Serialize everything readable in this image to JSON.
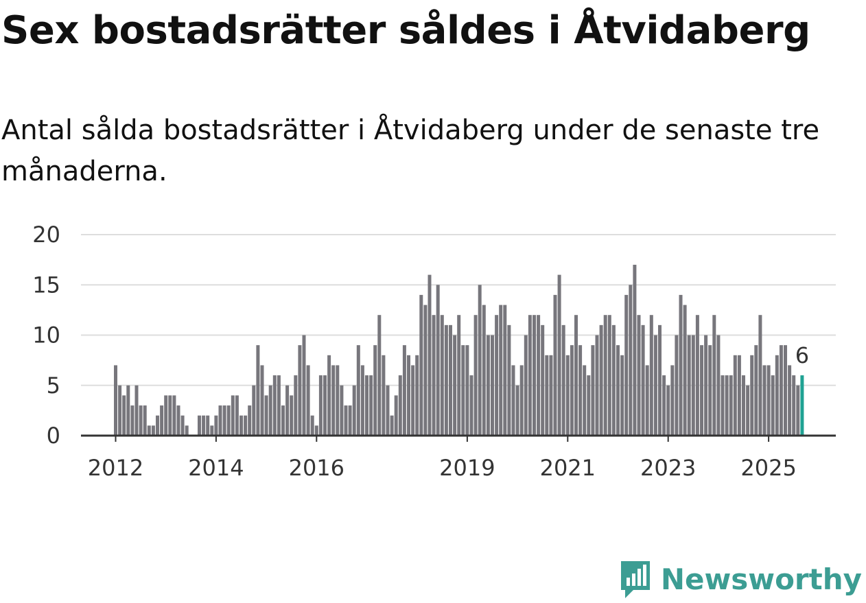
{
  "title": "Sex bostadsrätter såldes i Åtvidaberg",
  "subtitle": "Antal sålda bostadsrätter i Åtvidaberg under de senaste tre månaderna.",
  "colors": {
    "bar": "#77767c",
    "highlight": "#20a293",
    "grid": "#dddddd",
    "axis": "#333333",
    "brand": "#3c9d93"
  },
  "logo": {
    "text": "Newsworthy",
    "icon": "newsworthy-logo-icon"
  },
  "chart_data": {
    "type": "bar",
    "title": "Sex bostadsrätter såldes i Åtvidaberg",
    "xlabel": "",
    "ylabel": "",
    "ylim": [
      0,
      20
    ],
    "yticks": [
      0,
      5,
      10,
      15,
      20
    ],
    "x_start": "2012-01",
    "grid": true,
    "xtick_labels": [
      {
        "label": "2012",
        "index": 0
      },
      {
        "label": "2014",
        "index": 24
      },
      {
        "label": "2016",
        "index": 48
      },
      {
        "label": "2019",
        "index": 84
      },
      {
        "label": "2021",
        "index": 108
      },
      {
        "label": "2023",
        "index": 132
      },
      {
        "label": "2025",
        "index": 156
      }
    ],
    "highlight_label": "6",
    "values": [
      7,
      5,
      4,
      5,
      3,
      5,
      3,
      3,
      1,
      1,
      2,
      3,
      4,
      4,
      4,
      3,
      2,
      1,
      0,
      0,
      2,
      2,
      2,
      1,
      2,
      3,
      3,
      3,
      4,
      4,
      2,
      2,
      3,
      5,
      9,
      7,
      4,
      5,
      6,
      6,
      3,
      5,
      4,
      6,
      9,
      10,
      7,
      2,
      1,
      6,
      6,
      8,
      7,
      7,
      5,
      3,
      3,
      5,
      9,
      7,
      6,
      6,
      9,
      12,
      8,
      5,
      2,
      4,
      6,
      9,
      8,
      7,
      8,
      14,
      13,
      16,
      12,
      15,
      12,
      11,
      11,
      10,
      12,
      9,
      9,
      6,
      12,
      15,
      13,
      10,
      10,
      12,
      13,
      13,
      11,
      7,
      5,
      7,
      10,
      12,
      12,
      12,
      11,
      8,
      8,
      14,
      16,
      11,
      8,
      9,
      12,
      9,
      7,
      6,
      9,
      10,
      11,
      12,
      12,
      11,
      9,
      8,
      14,
      15,
      17,
      12,
      11,
      7,
      12,
      10,
      11,
      6,
      5,
      7,
      10,
      14,
      13,
      10,
      10,
      12,
      9,
      10,
      9,
      12,
      10,
      6,
      6,
      6,
      8,
      8,
      6,
      5,
      8,
      9,
      12,
      7,
      7,
      6,
      8,
      9,
      9,
      7,
      6,
      5,
      6
    ]
  }
}
